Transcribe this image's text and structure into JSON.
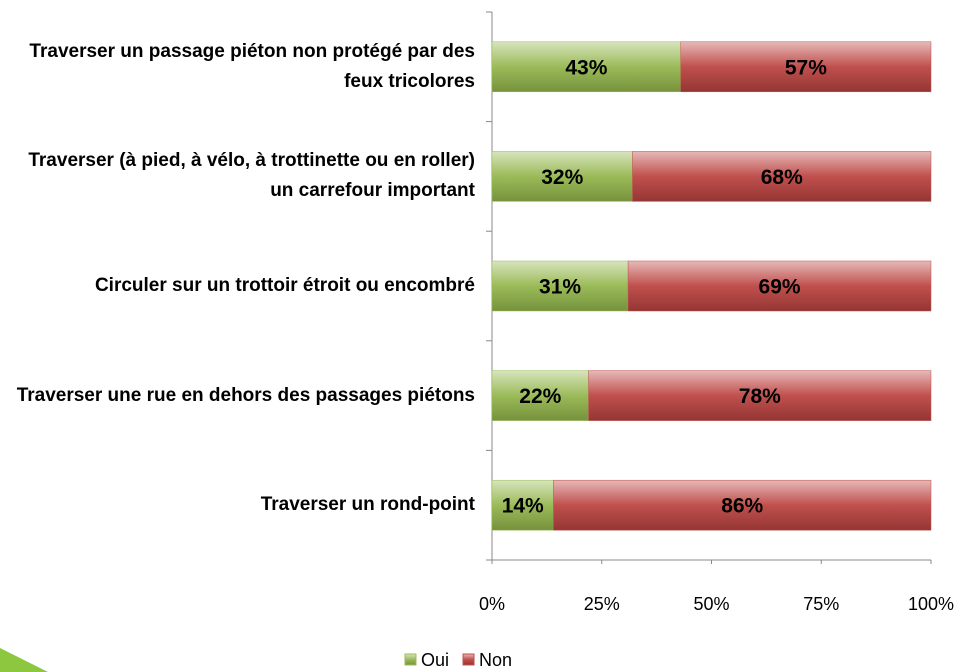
{
  "chart_data": {
    "type": "stacked-barh",
    "categories": [
      "Traverser un passage piéton non protégé par des feux tricolores",
      "Traverser (à pied, à vélo, à trottinette ou en roller) un carrefour important",
      "Circuler sur un trottoir étroit ou encombré",
      "Traverser une rue en dehors des passages piétons",
      "Traverser un rond-point"
    ],
    "series": [
      {
        "name": "Oui",
        "color": "#9bbb59",
        "values": [
          43,
          32,
          31,
          22,
          14
        ],
        "value_labels": [
          "43%",
          "32%",
          "31%",
          "22%",
          "14%"
        ]
      },
      {
        "name": "Non",
        "color": "#c0504d",
        "values": [
          57,
          68,
          69,
          78,
          86
        ],
        "value_labels": [
          "57%",
          "68%",
          "69%",
          "78%",
          "86%"
        ]
      }
    ],
    "xlim": [
      0,
      100
    ],
    "xticks": [
      {
        "value": 0,
        "label": "0%"
      },
      {
        "value": 25,
        "label": "25%"
      },
      {
        "value": 50,
        "label": "50%"
      },
      {
        "value": 75,
        "label": "75%"
      },
      {
        "value": 100,
        "label": "100%"
      }
    ],
    "legend": "bottom"
  }
}
